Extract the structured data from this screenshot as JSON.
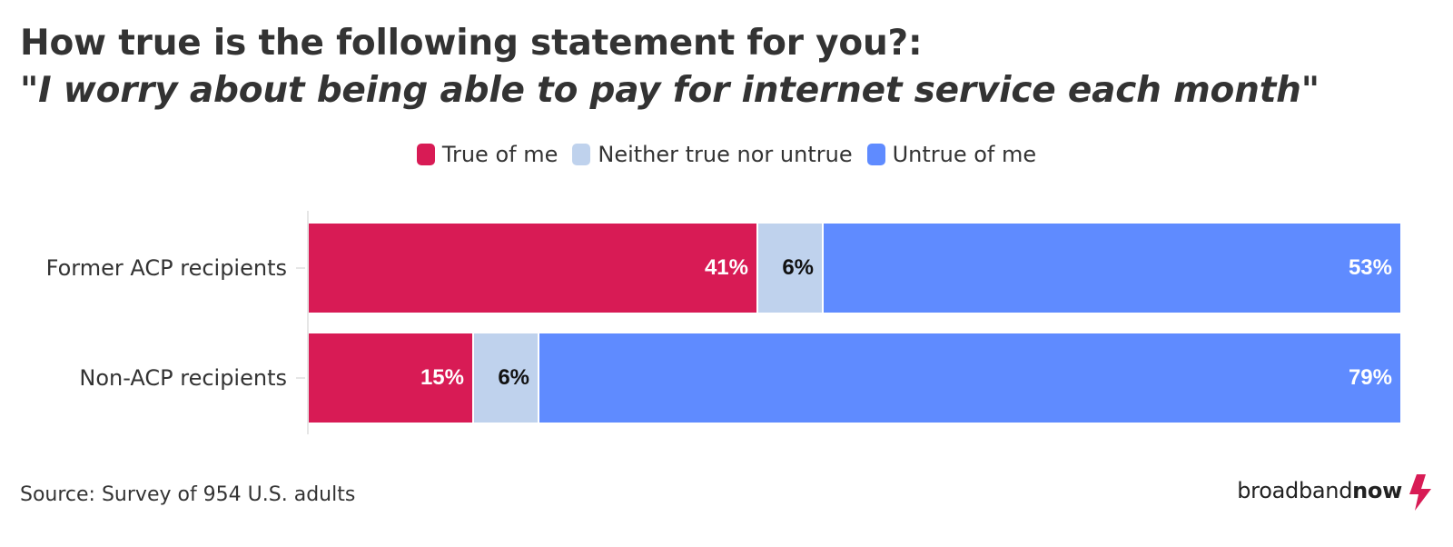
{
  "title": {
    "line1": "How true is the following statement for you?:",
    "line2": "\"I worry about being able to pay for internet service each month\""
  },
  "legend": [
    {
      "label": "True of me",
      "color": "#d81b55"
    },
    {
      "label": "Neither true nor untrue",
      "color": "#bfd2ed"
    },
    {
      "label": "Untrue of me",
      "color": "#5f8bff"
    }
  ],
  "chart_data": {
    "type": "bar",
    "orientation": "horizontal",
    "stacked": true,
    "normalized_percent": true,
    "categories": [
      "Former ACP recipients",
      "Non-ACP recipients"
    ],
    "series": [
      {
        "name": "True of me",
        "color": "#d81b55",
        "label_color": "#ffffff",
        "values": [
          41,
          15
        ],
        "labels": [
          "41%",
          "15%"
        ]
      },
      {
        "name": "Neither true nor untrue",
        "color": "#bfd2ed",
        "label_color": "#111111",
        "values": [
          6,
          6
        ],
        "labels": [
          "6%",
          "6%"
        ]
      },
      {
        "name": "Untrue of me",
        "color": "#5f8bff",
        "label_color": "#ffffff",
        "values": [
          53,
          79
        ],
        "labels": [
          "53%",
          "79%"
        ]
      }
    ],
    "xlim": [
      0,
      100
    ],
    "legend_position": "top-center",
    "grid": false
  },
  "footer": {
    "source": "Source: Survey of 954 U.S. adults",
    "logo_part1": "broadband",
    "logo_part2": "now",
    "logo_accent": "#d81b55"
  }
}
